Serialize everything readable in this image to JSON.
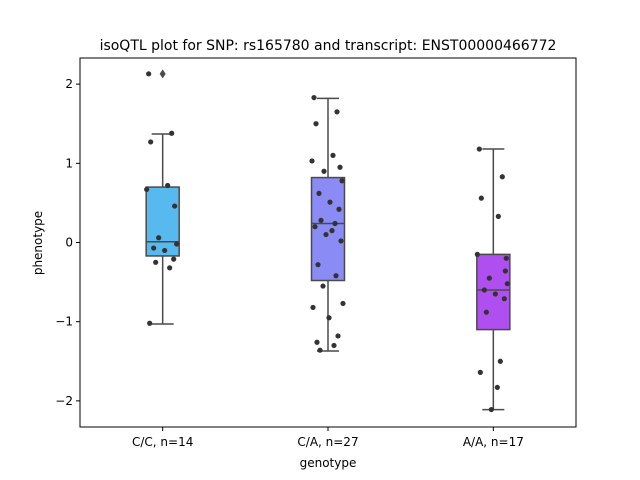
{
  "chart_data": {
    "type": "box",
    "title": "isoQTL plot for SNP: rs165780 and transcript: ENST00000466772",
    "xlabel": "genotype",
    "ylabel": "phenotype",
    "ylim": [
      -2.33,
      2.33
    ],
    "yticks": [
      -2,
      -1,
      0,
      1,
      2
    ],
    "ytick_labels": [
      "−2",
      "−1",
      "0",
      "1",
      "2"
    ],
    "categories": [
      "C/C, n=14",
      "C/A, n=27",
      "A/A, n=17"
    ],
    "boxes": [
      {
        "name": "C/C, n=14",
        "color": "#58b9ef",
        "q1": -0.17,
        "median": 0.01,
        "q3": 0.7,
        "whisker_low": -1.03,
        "whisker_high": 1.37,
        "outliers": [
          2.13
        ],
        "points": [
          2.13,
          1.38,
          1.27,
          0.72,
          0.67,
          0.46,
          0.06,
          -0.02,
          -0.07,
          -0.1,
          -0.21,
          -0.25,
          -0.32,
          -1.02
        ]
      },
      {
        "name": "C/A, n=27",
        "color": "#8b8bf5",
        "q1": -0.48,
        "median": 0.24,
        "q3": 0.82,
        "whisker_low": -1.37,
        "whisker_high": 1.82,
        "outliers": [],
        "points": [
          1.83,
          1.65,
          1.5,
          1.1,
          1.03,
          0.95,
          0.9,
          0.78,
          0.62,
          0.51,
          0.42,
          0.28,
          0.24,
          0.2,
          0.15,
          0.1,
          0.02,
          -0.28,
          -0.42,
          -0.55,
          -0.77,
          -0.82,
          -0.95,
          -1.18,
          -1.26,
          -1.3,
          -1.36
        ]
      },
      {
        "name": "A/A, n=17",
        "color": "#b04ff0",
        "q1": -1.1,
        "median": -0.6,
        "q3": -0.15,
        "whisker_low": -2.11,
        "whisker_high": 1.18,
        "outliers": [],
        "points": [
          1.18,
          0.83,
          0.56,
          0.33,
          -0.15,
          -0.36,
          -0.45,
          -0.52,
          -0.6,
          -0.65,
          -0.71,
          -0.88,
          -1.5,
          -1.64,
          -1.83,
          -2.11,
          -0.2
        ]
      }
    ],
    "grid": false,
    "legend": "none"
  }
}
